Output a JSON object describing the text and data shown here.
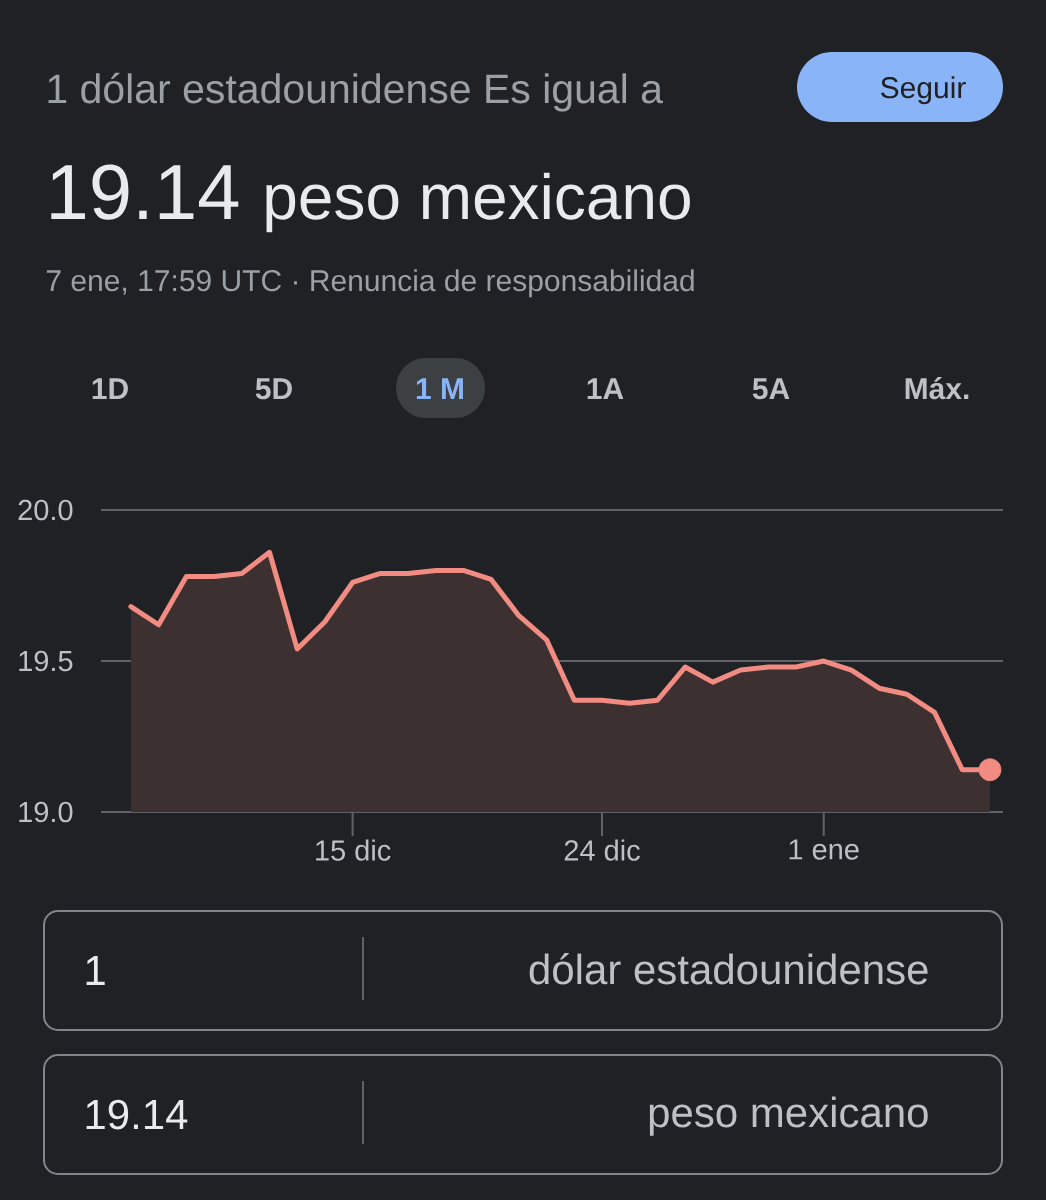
{
  "chart_data": {
    "type": "area",
    "title": "1 dólar estadounidense Es igual a",
    "subtitle": "19.14 peso mexicano",
    "annotations": [
      "7 ene, 17:59 UTC · Renuncia de responsabilidad",
      "Seguir",
      "1D",
      "5D",
      "1 M",
      "1A",
      "5A",
      "Máx.",
      "1",
      "dólar estadounidense",
      "19.14",
      "peso mexicano"
    ],
    "categories": [
      null,
      null,
      null,
      null,
      null,
      null,
      null,
      null,
      "15 dic",
      null,
      null,
      null,
      null,
      null,
      null,
      null,
      null,
      "24 dic",
      null,
      null,
      null,
      null,
      null,
      null,
      null,
      "1 ene",
      null,
      null,
      null,
      null,
      null,
      null
    ],
    "ylim": [
      19,
      20
    ],
    "yticks": [
      {
        "value": 19,
        "label": "19.0"
      },
      {
        "value": 19.5,
        "label": "19.5"
      },
      {
        "value": 20,
        "label": "20.0"
      }
    ],
    "grid": "y",
    "series": [
      {
        "color": "#f28b82",
        "values": [
          19.68,
          19.62,
          19.78,
          19.78,
          19.79,
          19.86,
          19.54,
          19.63,
          19.76,
          19.79,
          19.79,
          19.8,
          19.8,
          19.77,
          19.65,
          19.57,
          19.37,
          19.37,
          19.36,
          19.37,
          19.48,
          19.43,
          19.47,
          19.48,
          19.48,
          19.5,
          19.47,
          19.41,
          19.39,
          19.33,
          19.14,
          19.14
        ]
      },
      {
        "type": "scatter",
        "marker": "circle",
        "color": "#f28b82",
        "values": [
          null,
          null,
          null,
          null,
          null,
          null,
          null,
          null,
          null,
          null,
          null,
          null,
          null,
          null,
          null,
          null,
          null,
          null,
          null,
          null,
          null,
          null,
          null,
          null,
          null,
          null,
          null,
          null,
          null,
          null,
          null,
          19.14
        ]
      }
    ]
  }
}
